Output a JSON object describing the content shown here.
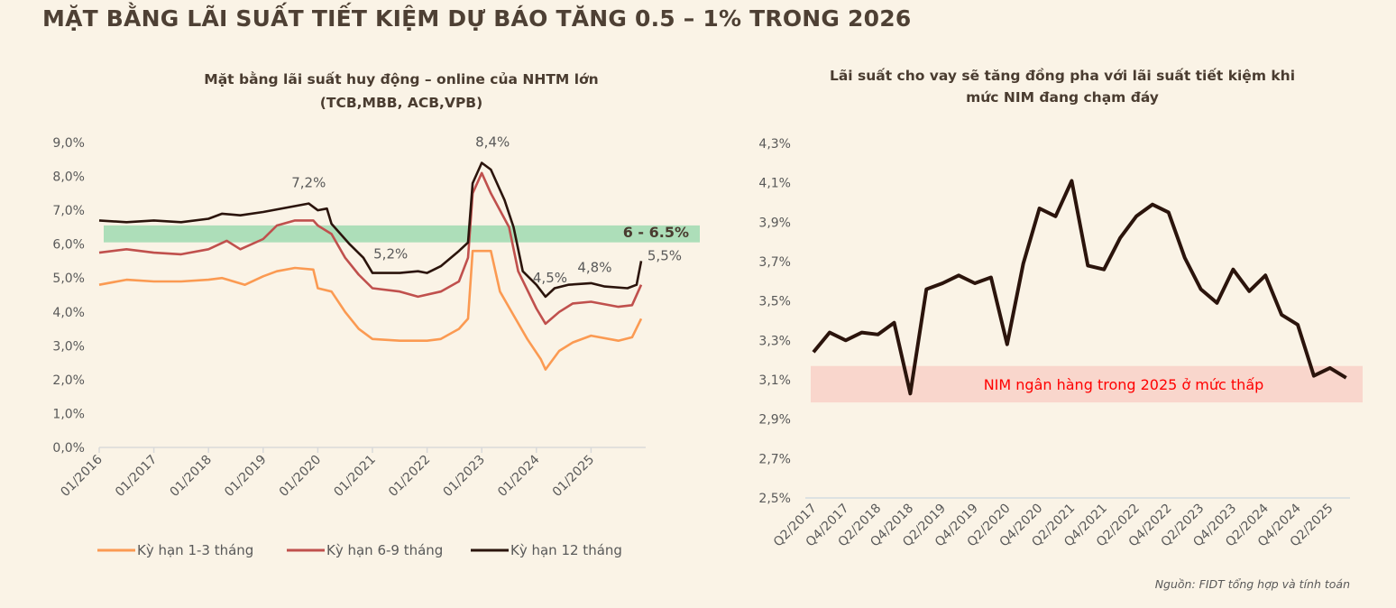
{
  "title": "MẶT BẰNG LÃI SUẤT TIẾT KIỆM DỰ BÁO TĂNG 0.5 – 1% TRONG 2026",
  "source": "Nguồn: FIDT tổng hợp và tính toán",
  "chart_data": [
    {
      "type": "line",
      "title_lines": [
        "Mặt bằng lãi suất huy động – online của NHTM lớn",
        "(TCB,MBB, ACB,VPB)"
      ],
      "x_ticks": [
        "01/2016",
        "01/2017",
        "01/2018",
        "01/2019",
        "01/2020",
        "01/2021",
        "01/2022",
        "01/2023",
        "01/2024",
        "01/2025"
      ],
      "y_ticks": [
        "0,0%",
        "1,0%",
        "2,0%",
        "3,0%",
        "4,0%",
        "5,0%",
        "6,0%",
        "7,0%",
        "8,0%",
        "9,0%"
      ],
      "ylim": [
        0,
        9
      ],
      "xlim": [
        "2016-01",
        "2025-12"
      ],
      "grid": false,
      "legend_position": "bottom",
      "band": {
        "from": 6.0,
        "to": 6.5,
        "label": "6 - 6.5%",
        "color": "#a9dcb6"
      },
      "annotations": [
        {
          "text": "7,2%",
          "x": "2019-11",
          "y": 7.2
        },
        {
          "text": "8,4%",
          "x": "2023-01",
          "y": 8.4
        },
        {
          "text": "5,2%",
          "x": "2021-05",
          "y": 5.2
        },
        {
          "text": "4,5%",
          "x": "2024-04",
          "y": 4.5
        },
        {
          "text": "4,8%",
          "x": "2025-01",
          "y": 4.8
        },
        {
          "text": "5,5%",
          "x": "2025-12",
          "y": 5.5
        }
      ],
      "series": [
        {
          "name": "Kỳ hạn 1-3 tháng",
          "color": "#fb9a52",
          "points": [
            [
              "2016-01",
              4.8
            ],
            [
              "2016-07",
              4.95
            ],
            [
              "2017-01",
              4.9
            ],
            [
              "2017-07",
              4.9
            ],
            [
              "2018-01",
              4.95
            ],
            [
              "2018-04",
              5.0
            ],
            [
              "2018-09",
              4.8
            ],
            [
              "2019-01",
              5.05
            ],
            [
              "2019-04",
              5.2
            ],
            [
              "2019-08",
              5.3
            ],
            [
              "2019-12",
              5.25
            ],
            [
              "2020-01",
              4.7
            ],
            [
              "2020-04",
              4.6
            ],
            [
              "2020-07",
              4.0
            ],
            [
              "2020-10",
              3.5
            ],
            [
              "2021-01",
              3.2
            ],
            [
              "2021-07",
              3.15
            ],
            [
              "2022-01",
              3.15
            ],
            [
              "2022-04",
              3.2
            ],
            [
              "2022-08",
              3.5
            ],
            [
              "2022-10",
              3.8
            ],
            [
              "2022-11",
              5.8
            ],
            [
              "2023-03",
              5.8
            ],
            [
              "2023-05",
              4.6
            ],
            [
              "2023-08",
              3.9
            ],
            [
              "2023-11",
              3.2
            ],
            [
              "2024-02",
              2.6
            ],
            [
              "2024-03",
              2.3
            ],
            [
              "2024-06",
              2.85
            ],
            [
              "2024-09",
              3.1
            ],
            [
              "2025-01",
              3.3
            ],
            [
              "2025-07",
              3.15
            ],
            [
              "2025-10",
              3.25
            ],
            [
              "2025-12",
              3.8
            ]
          ]
        },
        {
          "name": "Kỳ hạn 6-9 tháng",
          "color": "#c0504d",
          "points": [
            [
              "2016-01",
              5.75
            ],
            [
              "2016-07",
              5.85
            ],
            [
              "2017-01",
              5.75
            ],
            [
              "2017-07",
              5.7
            ],
            [
              "2018-01",
              5.85
            ],
            [
              "2018-05",
              6.1
            ],
            [
              "2018-08",
              5.85
            ],
            [
              "2019-01",
              6.15
            ],
            [
              "2019-04",
              6.55
            ],
            [
              "2019-08",
              6.7
            ],
            [
              "2019-12",
              6.7
            ],
            [
              "2020-01",
              6.55
            ],
            [
              "2020-04",
              6.3
            ],
            [
              "2020-07",
              5.6
            ],
            [
              "2020-10",
              5.1
            ],
            [
              "2021-01",
              4.7
            ],
            [
              "2021-07",
              4.6
            ],
            [
              "2021-11",
              4.45
            ],
            [
              "2022-04",
              4.6
            ],
            [
              "2022-08",
              4.9
            ],
            [
              "2022-10",
              5.6
            ],
            [
              "2022-11",
              7.5
            ],
            [
              "2023-01",
              8.1
            ],
            [
              "2023-03",
              7.5
            ],
            [
              "2023-07",
              6.5
            ],
            [
              "2023-09",
              5.2
            ],
            [
              "2024-01",
              4.1
            ],
            [
              "2024-03",
              3.65
            ],
            [
              "2024-06",
              4.0
            ],
            [
              "2024-09",
              4.25
            ],
            [
              "2025-01",
              4.3
            ],
            [
              "2025-07",
              4.15
            ],
            [
              "2025-10",
              4.2
            ],
            [
              "2025-12",
              4.8
            ]
          ]
        },
        {
          "name": "Kỳ hạn 12 tháng",
          "color": "#2b140c",
          "points": [
            [
              "2016-01",
              6.7
            ],
            [
              "2016-07",
              6.65
            ],
            [
              "2017-01",
              6.7
            ],
            [
              "2017-07",
              6.65
            ],
            [
              "2018-01",
              6.75
            ],
            [
              "2018-04",
              6.9
            ],
            [
              "2018-08",
              6.85
            ],
            [
              "2019-01",
              6.95
            ],
            [
              "2019-07",
              7.1
            ],
            [
              "2019-11",
              7.2
            ],
            [
              "2020-01",
              7.0
            ],
            [
              "2020-03",
              7.05
            ],
            [
              "2020-04",
              6.6
            ],
            [
              "2020-08",
              6.0
            ],
            [
              "2020-11",
              5.6
            ],
            [
              "2021-01",
              5.15
            ],
            [
              "2021-07",
              5.15
            ],
            [
              "2021-11",
              5.2
            ],
            [
              "2022-01",
              5.15
            ],
            [
              "2022-04",
              5.35
            ],
            [
              "2022-08",
              5.8
            ],
            [
              "2022-10",
              6.05
            ],
            [
              "2022-11",
              7.8
            ],
            [
              "2023-01",
              8.4
            ],
            [
              "2023-03",
              8.2
            ],
            [
              "2023-06",
              7.3
            ],
            [
              "2023-08",
              6.5
            ],
            [
              "2023-10",
              5.2
            ],
            [
              "2024-01",
              4.8
            ],
            [
              "2024-03",
              4.45
            ],
            [
              "2024-05",
              4.7
            ],
            [
              "2024-08",
              4.8
            ],
            [
              "2025-01",
              4.85
            ],
            [
              "2025-04",
              4.75
            ],
            [
              "2025-09",
              4.7
            ],
            [
              "2025-11",
              4.8
            ],
            [
              "2025-12",
              5.5
            ]
          ]
        }
      ]
    },
    {
      "type": "line",
      "title_lines": [
        "Lãi suất cho vay sẽ tăng đồng pha với lãi suất tiết kiệm khi",
        "mức NIM đang chạm đáy"
      ],
      "x": [
        "Q2/2017",
        "Q3/2017",
        "Q4/2017",
        "Q1/2018",
        "Q2/2018",
        "Q3/2018",
        "Q4/2018",
        "Q1/2019",
        "Q2/2019",
        "Q3/2019",
        "Q4/2019",
        "Q1/2020",
        "Q2/2020",
        "Q3/2020",
        "Q4/2020",
        "Q1/2021",
        "Q2/2021",
        "Q3/2021",
        "Q4/2021",
        "Q1/2022",
        "Q2/2022",
        "Q3/2022",
        "Q4/2022",
        "Q1/2023",
        "Q2/2023",
        "Q3/2023",
        "Q4/2023",
        "Q1/2024",
        "Q2/2024",
        "Q3/2024",
        "Q4/2024",
        "Q1/2025",
        "Q2/2025",
        "Q3/2025"
      ],
      "x_ticks": [
        "Q2/2017",
        "Q4/2017",
        "Q2/2018",
        "Q4/2018",
        "Q2/2019",
        "Q4/2019",
        "Q2/2020",
        "Q4/2020",
        "Q2/2021",
        "Q4/2021",
        "Q2/2022",
        "Q4/2022",
        "Q2/2023",
        "Q4/2023",
        "Q2/2024",
        "Q4/2024",
        "Q2/2025"
      ],
      "values": [
        3.24,
        3.34,
        3.3,
        3.34,
        3.33,
        3.39,
        3.03,
        3.56,
        3.59,
        3.63,
        3.59,
        3.62,
        3.28,
        3.69,
        3.97,
        3.93,
        4.11,
        3.68,
        3.66,
        3.82,
        3.93,
        3.99,
        3.95,
        3.72,
        3.56,
        3.49,
        3.66,
        3.55,
        3.63,
        3.43,
        3.38,
        3.12,
        3.16,
        3.11
      ],
      "y_ticks": [
        "2,5%",
        "2,7%",
        "2,9%",
        "3,1%",
        "3,3%",
        "3,5%",
        "3,7%",
        "3,9%",
        "4,1%",
        "4,3%"
      ],
      "ylim": [
        2.5,
        4.3
      ],
      "grid": false,
      "color": "#2b140c",
      "band": {
        "from": 2.985,
        "to": 3.17,
        "label": "NIM ngân hàng trong 2025 ở mức thấp",
        "color": "#f9d6cc",
        "label_color": "#ff0000"
      }
    }
  ]
}
